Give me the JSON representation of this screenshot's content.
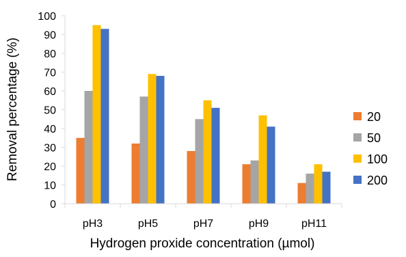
{
  "chart_data": {
    "type": "bar",
    "title": "",
    "xlabel": "Hydrogen proxide concentration (µmol)",
    "ylabel": "Removal percentage (%)",
    "categories": [
      "pH3",
      "pH5",
      "pH7",
      "pH9",
      "pH11"
    ],
    "ylim": [
      0,
      100
    ],
    "yticks": [
      "0",
      "10",
      "20",
      "30",
      "40",
      "50",
      "60",
      "70",
      "80",
      "90",
      "100"
    ],
    "grid": false,
    "legend_position": "right",
    "series": [
      {
        "name": "20",
        "color": "#ED7D31",
        "values": [
          35,
          32,
          28,
          21,
          11
        ]
      },
      {
        "name": "50",
        "color": "#A5A5A5",
        "values": [
          60,
          57,
          45,
          23,
          16
        ]
      },
      {
        "name": "100",
        "color": "#FFC000",
        "values": [
          95,
          69,
          55,
          47,
          21
        ]
      },
      {
        "name": "200",
        "color": "#4472C4",
        "values": [
          93,
          68,
          51,
          41,
          17
        ]
      }
    ]
  }
}
